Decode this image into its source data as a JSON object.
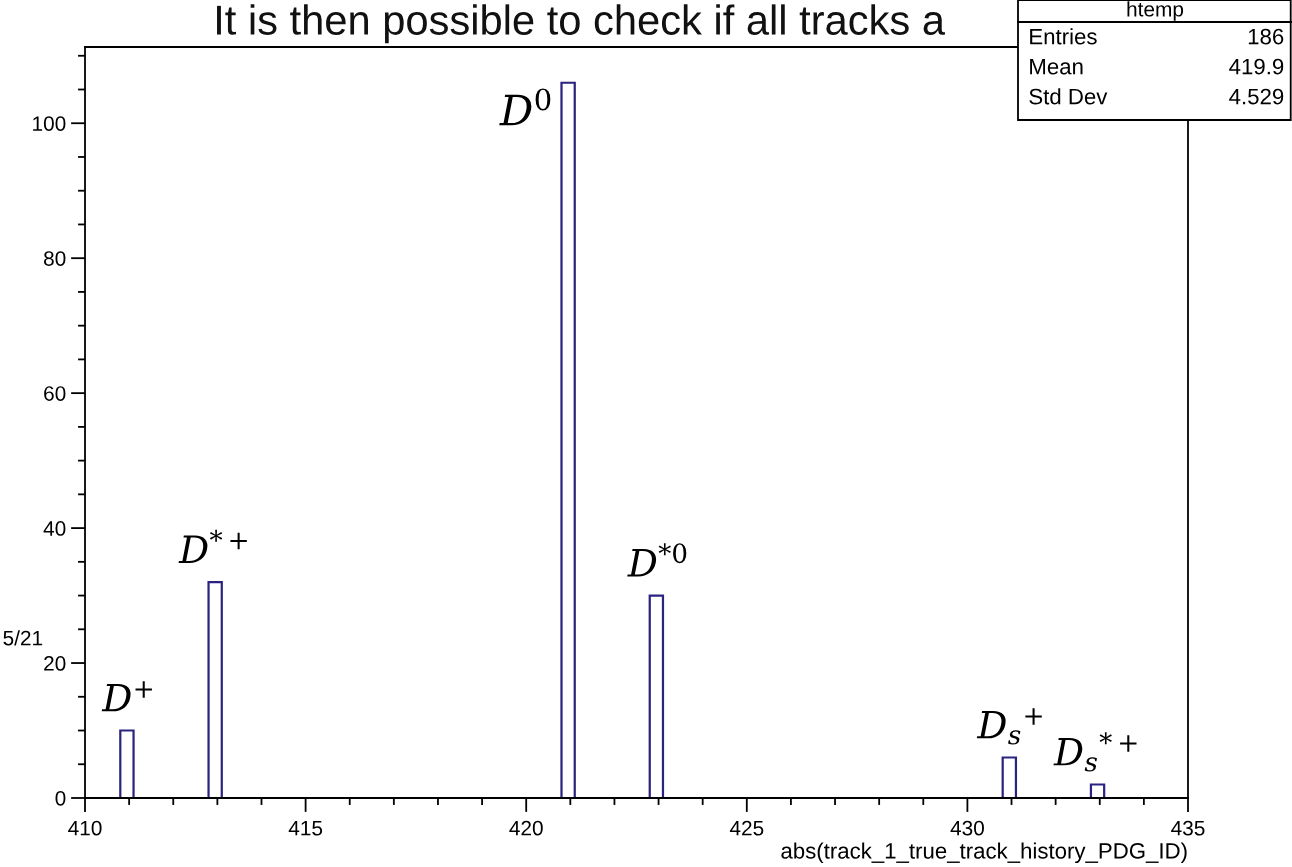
{
  "chart_data": {
    "type": "histogram",
    "title": "It is then possible to check if all tracks a",
    "xlabel": "abs(track_1_true_track_history_PDG_ID)",
    "bins": [
      410,
      410.8,
      411.1,
      412.8,
      413.1,
      420.8,
      421.1,
      422.8,
      423.1,
      430.8,
      431.1,
      432.8,
      433.1,
      435
    ],
    "values": [
      0,
      10,
      0,
      32,
      0,
      106,
      0,
      30,
      0,
      6,
      0,
      2,
      0
    ],
    "color": "#2b2380",
    "xlim": [
      410,
      435
    ],
    "xticks": [
      410,
      415,
      420,
      425,
      430,
      435
    ],
    "ylim": [
      0,
      111.3
    ],
    "yticks": [
      0,
      20,
      40,
      60,
      80,
      100
    ],
    "grid": false,
    "annotations": [
      "5/21",
      "htemp",
      "Entries 186",
      "Mean 419.9",
      "Std Dev 4.529",
      {
        "text": "D$^{+}$",
        "x": 411,
        "y": 10
      },
      {
        "text": "D$^{*+}$",
        "x": 413,
        "y": 32
      },
      {
        "text": "D$^{0}$",
        "x": 421,
        "y": 106
      },
      {
        "text": "D$^{*0}$",
        "x": 423,
        "y": 30
      },
      {
        "text": "D$_{s}$$^{+}$",
        "x": 431,
        "y": 6
      },
      {
        "text": "D$_{s}$$^{*+}$",
        "x": 433,
        "y": 2
      }
    ]
  }
}
